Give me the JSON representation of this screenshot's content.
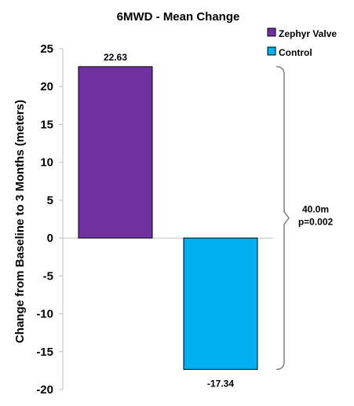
{
  "chart_data": {
    "type": "bar",
    "title": "6MWD - Mean Change",
    "ylabel": "Change from Baseline to 3 Months (meters)",
    "xlabel": "",
    "ylim": [
      -20,
      25
    ],
    "yticks": [
      25,
      20,
      15,
      10,
      5,
      0,
      -5,
      -10,
      -15,
      -20
    ],
    "grid": false,
    "legend_position": "top-right",
    "series": [
      {
        "name": "Zephyr Valve",
        "value": 22.63,
        "label": "22.63",
        "color": "#7030A0"
      },
      {
        "name": "Control",
        "value": -17.34,
        "label": "-17.34",
        "color": "#00B0F0"
      }
    ],
    "annotation": {
      "line1": "40.0m",
      "line2": "p=0.002"
    }
  }
}
